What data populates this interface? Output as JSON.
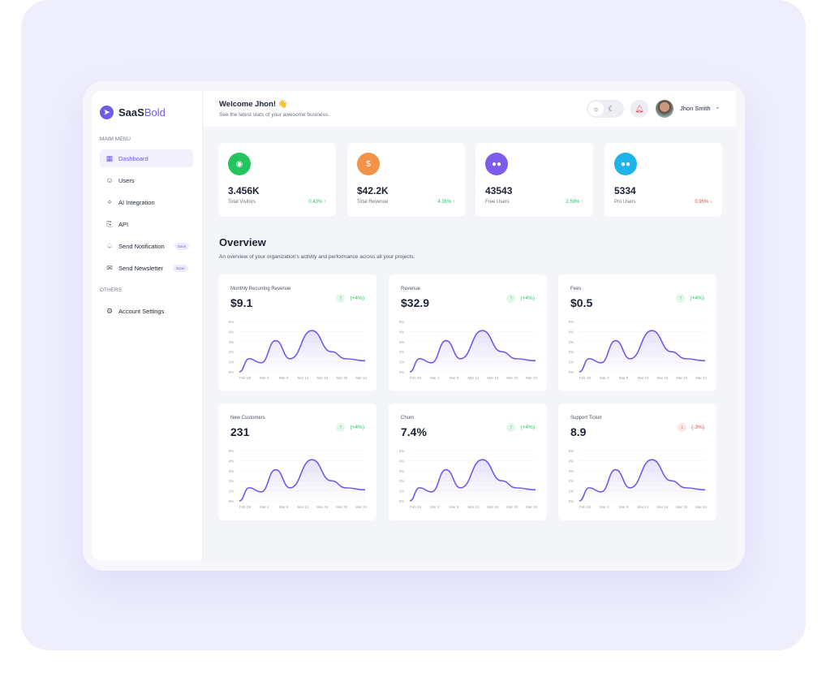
{
  "brand": {
    "name_a": "SaaS",
    "name_b": "Bold",
    "color": "#6d5ce7"
  },
  "sidebar": {
    "main_label": "MAIM MENU",
    "others_label": "OTHERS",
    "items": [
      {
        "label": "Dashboard",
        "icon": "grid-icon",
        "active": true
      },
      {
        "label": "Users",
        "icon": "users-icon"
      },
      {
        "label": "AI Integration",
        "icon": "sparkle-icon"
      },
      {
        "label": "API",
        "icon": "api-icon"
      },
      {
        "label": "Send Notification",
        "icon": "bell-icon",
        "badge": "Soon"
      },
      {
        "label": "Send Newsletter",
        "icon": "mail-icon",
        "badge": "Soon"
      }
    ],
    "others": [
      {
        "label": "Account Settings",
        "icon": "gear-icon"
      }
    ]
  },
  "header": {
    "welcome": "Welcome Jhon! 👋",
    "subtitle": "See the latest stats of your awesome business.",
    "user": "Jhon Smith",
    "theme": "light"
  },
  "stats": [
    {
      "value": "3.456K",
      "label": "Total Visitors",
      "change": "0.43% ↑",
      "trend": "up",
      "color": "#22c55e",
      "icon": "eye-icon",
      "glyph": "◉"
    },
    {
      "value": "$42.2K",
      "label": "Total Revenue",
      "change": "4.35% ↑",
      "trend": "up",
      "color": "#f4924a",
      "icon": "dollar-icon",
      "glyph": "$"
    },
    {
      "value": "43543",
      "label": "Free Users",
      "change": "2.59% ↑",
      "trend": "up",
      "color": "#7c5ce8",
      "icon": "users-icon",
      "glyph": "●●"
    },
    {
      "value": "5334",
      "label": "Pro Users",
      "change": "0.95% ↓",
      "trend": "down",
      "color": "#1fb3ea",
      "icon": "users-icon",
      "glyph": "●●"
    }
  ],
  "overview": {
    "title": "Overview",
    "subtitle": "An overview of your organization's activity and performance across all your projects."
  },
  "colors": {
    "up": "#22c55e",
    "down": "#ef4444",
    "line": "#6d5ce7"
  },
  "chart_data": [
    {
      "type": "area",
      "title": "Monthly Recurring Revenue",
      "value": "$9.1",
      "change": "(+4%)",
      "trend": "up",
      "x": [
        "Feb 28",
        "Mar 4",
        "Mar 8",
        "Mar 12",
        "Mar 16",
        "Mar 20",
        "Mar 24"
      ],
      "yticks": [
        "5%",
        "4%",
        "3%",
        "2%",
        "1%",
        "0%"
      ],
      "ylim": [
        0,
        5
      ],
      "points": [
        [
          0,
          0
        ],
        [
          2,
          1.3
        ],
        [
          4.5,
          0.9
        ],
        [
          7.5,
          3.1
        ],
        [
          10.5,
          1.3
        ],
        [
          15,
          4.1
        ],
        [
          19,
          2
        ],
        [
          22,
          1.3
        ],
        [
          26,
          1.1
        ]
      ]
    },
    {
      "type": "area",
      "title": "Revenue",
      "value": "$32.9",
      "change": "(+4%)",
      "trend": "up",
      "x": [
        "Feb 28",
        "Mar 4",
        "Mar 8",
        "Mar 12",
        "Mar 16",
        "Mar 20",
        "Mar 24"
      ],
      "yticks": [
        "5%",
        "4%",
        "3%",
        "2%",
        "1%",
        "0%"
      ],
      "ylim": [
        0,
        5
      ],
      "points": [
        [
          0,
          0
        ],
        [
          2,
          1.3
        ],
        [
          4.5,
          0.9
        ],
        [
          7.5,
          3.1
        ],
        [
          10.5,
          1.3
        ],
        [
          15,
          4.1
        ],
        [
          19,
          2
        ],
        [
          22,
          1.3
        ],
        [
          26,
          1.1
        ]
      ]
    },
    {
      "type": "area",
      "title": "Fees",
      "value": "$0.5",
      "change": "(+4%)",
      "trend": "up",
      "x": [
        "Feb 28",
        "Mar 4",
        "Mar 8",
        "Mar 12",
        "Mar 16",
        "Mar 20",
        "Mar 24"
      ],
      "yticks": [
        "5%",
        "4%",
        "3%",
        "2%",
        "1%",
        "0%"
      ],
      "ylim": [
        0,
        5
      ],
      "points": [
        [
          0,
          0
        ],
        [
          2,
          1.3
        ],
        [
          4.5,
          0.9
        ],
        [
          7.5,
          3.1
        ],
        [
          10.5,
          1.3
        ],
        [
          15,
          4.1
        ],
        [
          19,
          2
        ],
        [
          22,
          1.3
        ],
        [
          26,
          1.1
        ]
      ]
    },
    {
      "type": "area",
      "title": "New Customers",
      "value": "231",
      "change": "(+4%)",
      "trend": "up",
      "x": [
        "Feb 28",
        "Mar 4",
        "Mar 8",
        "Mar 12",
        "Mar 16",
        "Mar 20",
        "Mar 24"
      ],
      "yticks": [
        "5%",
        "4%",
        "3%",
        "2%",
        "1%",
        "0%"
      ],
      "ylim": [
        0,
        5
      ],
      "points": [
        [
          0,
          0
        ],
        [
          2,
          1.3
        ],
        [
          4.5,
          0.9
        ],
        [
          7.5,
          3.1
        ],
        [
          10.5,
          1.3
        ],
        [
          15,
          4.1
        ],
        [
          19,
          2
        ],
        [
          22,
          1.3
        ],
        [
          26,
          1.1
        ]
      ]
    },
    {
      "type": "area",
      "title": "Churn",
      "value": "7.4%",
      "change": "(+4%)",
      "trend": "up",
      "x": [
        "Feb 28",
        "Mar 4",
        "Mar 8",
        "Mar 12",
        "Mar 16",
        "Mar 20",
        "Mar 24"
      ],
      "yticks": [
        "5%",
        "4%",
        "3%",
        "2%",
        "1%",
        "0%"
      ],
      "ylim": [
        0,
        5
      ],
      "points": [
        [
          0,
          0
        ],
        [
          2,
          1.3
        ],
        [
          4.5,
          0.9
        ],
        [
          7.5,
          3.1
        ],
        [
          10.5,
          1.3
        ],
        [
          15,
          4.1
        ],
        [
          19,
          2
        ],
        [
          22,
          1.3
        ],
        [
          26,
          1.1
        ]
      ]
    },
    {
      "type": "area",
      "title": "Support Ticket",
      "value": "8.9",
      "change": "(-3%)",
      "trend": "down",
      "x": [
        "Feb 28",
        "Mar 4",
        "Mar 8",
        "Mar 12",
        "Mar 16",
        "Mar 20",
        "Mar 24"
      ],
      "yticks": [
        "5%",
        "4%",
        "3%",
        "2%",
        "1%",
        "0%"
      ],
      "ylim": [
        0,
        5
      ],
      "points": [
        [
          0,
          0
        ],
        [
          2,
          1.3
        ],
        [
          4.5,
          0.9
        ],
        [
          7.5,
          3.1
        ],
        [
          10.5,
          1.3
        ],
        [
          15,
          4.1
        ],
        [
          19,
          2
        ],
        [
          22,
          1.3
        ],
        [
          26,
          1.1
        ]
      ]
    }
  ]
}
